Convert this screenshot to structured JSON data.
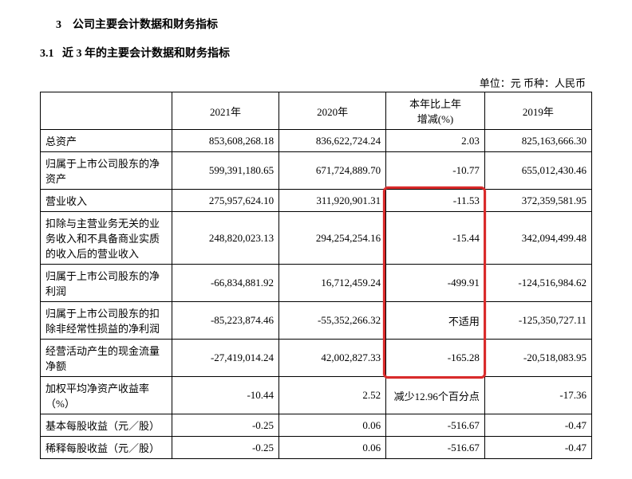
{
  "section": {
    "num": "3",
    "title": "公司主要会计数据和财务指标"
  },
  "subsection": {
    "num": "3.1",
    "title": "近 3 年的主要会计数据和财务指标"
  },
  "unit_line": "单位：元    币种：人民币",
  "headers": {
    "label": "",
    "y2021": "2021年",
    "y2020": "2020年",
    "change": "本年比上年\n增减(%)",
    "y2019": "2019年"
  },
  "rows": [
    {
      "label": "总资产",
      "y2021": "853,608,268.18",
      "y2020": "836,622,724.24",
      "change": "2.03",
      "y2019": "825,163,666.30"
    },
    {
      "label": "归属于上市公司股东的净资产",
      "y2021": "599,391,180.65",
      "y2020": "671,724,889.70",
      "change": "-10.77",
      "y2019": "655,012,430.46"
    },
    {
      "label": "营业收入",
      "y2021": "275,957,624.10",
      "y2020": "311,920,901.31",
      "change": "-11.53",
      "y2019": "372,359,581.95"
    },
    {
      "label": "扣除与主营业务无关的业务收入和不具备商业实质的收入后的营业收入",
      "y2021": "248,820,023.13",
      "y2020": "294,254,254.16",
      "change": "-15.44",
      "y2019": "342,094,499.48"
    },
    {
      "label": "归属于上市公司股东的净利润",
      "y2021": "-66,834,881.92",
      "y2020": "16,712,459.24",
      "change": "-499.91",
      "y2019": "-124,516,984.62"
    },
    {
      "label": "归属于上市公司股东的扣除非经常性损益的净利润",
      "y2021": "-85,223,874.46",
      "y2020": "-55,352,266.32",
      "change": "不适用",
      "y2019": "-125,350,727.11"
    },
    {
      "label": "经营活动产生的现金流量净额",
      "y2021": "-27,419,014.24",
      "y2020": "42,002,827.33",
      "change": "-165.28",
      "y2019": "-20,518,083.95"
    },
    {
      "label": "加权平均净资产收益率（%）",
      "y2021": "-10.44",
      "y2020": "2.52",
      "change": "减少12.96个百分点",
      "y2019": "-17.36"
    },
    {
      "label": "基本每股收益（元／股）",
      "y2021": "-0.25",
      "y2020": "0.06",
      "change": "-516.67",
      "y2019": "-0.47"
    },
    {
      "label": "稀释每股收益（元／股）",
      "y2021": "-0.25",
      "y2020": "0.06",
      "change": "-516.67",
      "y2019": "-0.47"
    }
  ],
  "highlight": {
    "color": "#d92b2b",
    "radius": 6,
    "top_row": 2,
    "bottom_row": 6,
    "column": "change"
  }
}
